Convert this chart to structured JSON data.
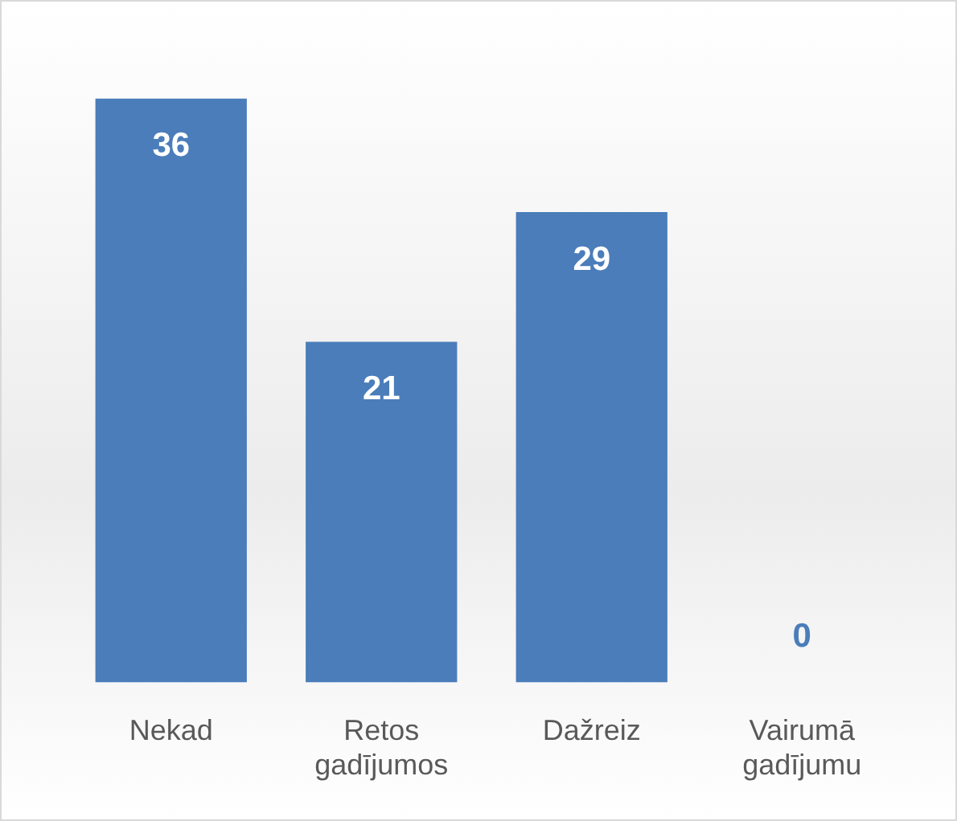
{
  "chart_data": {
    "type": "bar",
    "categories": [
      "Nekad",
      "Retos gadījumos",
      "Dažreiz",
      "Vairumā gadījumu"
    ],
    "values": [
      36,
      21,
      29,
      0
    ],
    "color": "#4a7dba",
    "data_labels": true
  }
}
